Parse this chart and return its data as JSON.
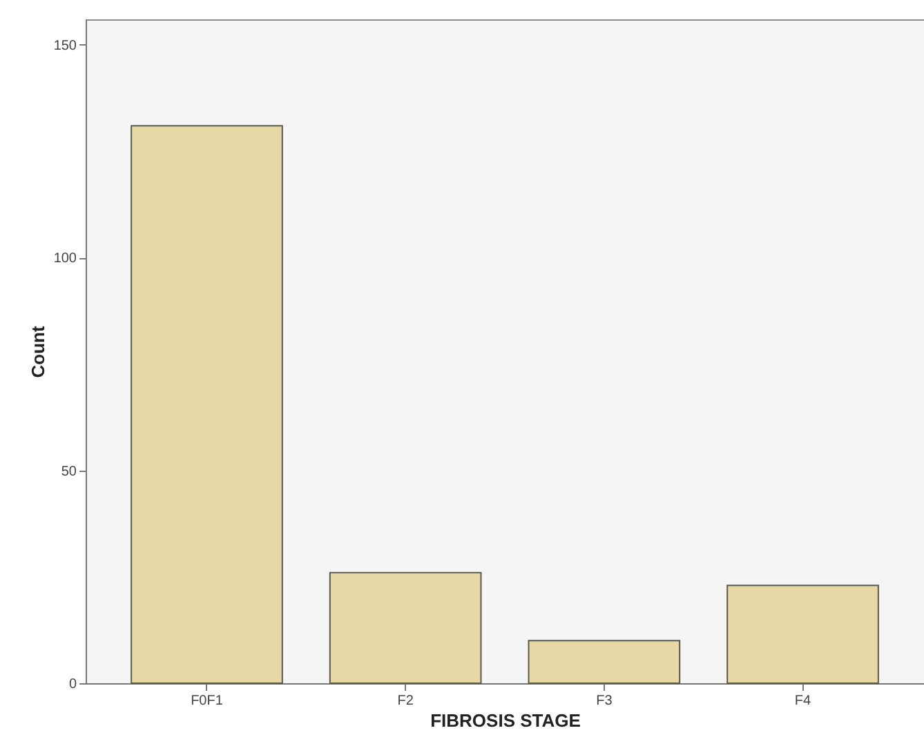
{
  "chart_data": {
    "type": "bar",
    "xlabel": "FIBROSIS STAGE",
    "ylabel": "Count",
    "categories": [
      "F0F1",
      "F2",
      "F3",
      "F4"
    ],
    "values": [
      131,
      26,
      10,
      23
    ],
    "color": "#e6d9a6",
    "ylim": [
      0,
      156
    ],
    "yticks": [
      0,
      50,
      100,
      150
    ],
    "grid": false
  }
}
